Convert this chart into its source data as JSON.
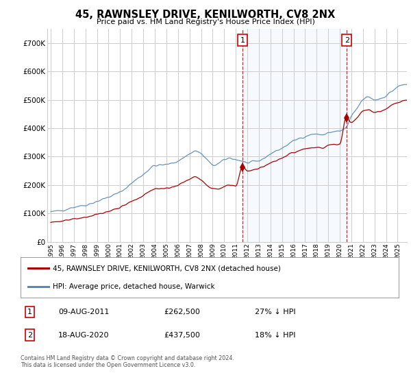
{
  "title": "45, RAWNSLEY DRIVE, KENILWORTH, CV8 2NX",
  "subtitle": "Price paid vs. HM Land Registry's House Price Index (HPI)",
  "legend_label_red": "45, RAWNSLEY DRIVE, KENILWORTH, CV8 2NX (detached house)",
  "legend_label_blue": "HPI: Average price, detached house, Warwick",
  "transaction1": {
    "label": "1",
    "date": "09-AUG-2011",
    "price": "£262,500",
    "note": "27% ↓ HPI"
  },
  "transaction2": {
    "label": "2",
    "date": "18-AUG-2020",
    "price": "£437,500",
    "note": "18% ↓ HPI"
  },
  "footer": "Contains HM Land Registry data © Crown copyright and database right 2024.\nThis data is licensed under the Open Government Licence v3.0.",
  "ylim": [
    0,
    750000
  ],
  "yticks": [
    0,
    100000,
    200000,
    300000,
    400000,
    500000,
    600000,
    700000
  ],
  "background_color": "#ffffff",
  "grid_color": "#cccccc",
  "red_color": "#aa0000",
  "blue_color": "#5588bb",
  "shade_color": "#ddeeff",
  "annotation_line_color": "#cc0000",
  "annotation1_year": 2011.6,
  "annotation2_year": 2020.6,
  "ann1_price": 262500,
  "ann2_price": 437500,
  "xlim_left": 1994.7,
  "xlim_right": 2025.8,
  "xtick_years": [
    1995,
    1996,
    1997,
    1998,
    1999,
    2000,
    2001,
    2002,
    2003,
    2004,
    2005,
    2006,
    2007,
    2008,
    2009,
    2010,
    2011,
    2012,
    2013,
    2014,
    2015,
    2016,
    2017,
    2018,
    2019,
    2020,
    2021,
    2022,
    2023,
    2024,
    2025
  ]
}
